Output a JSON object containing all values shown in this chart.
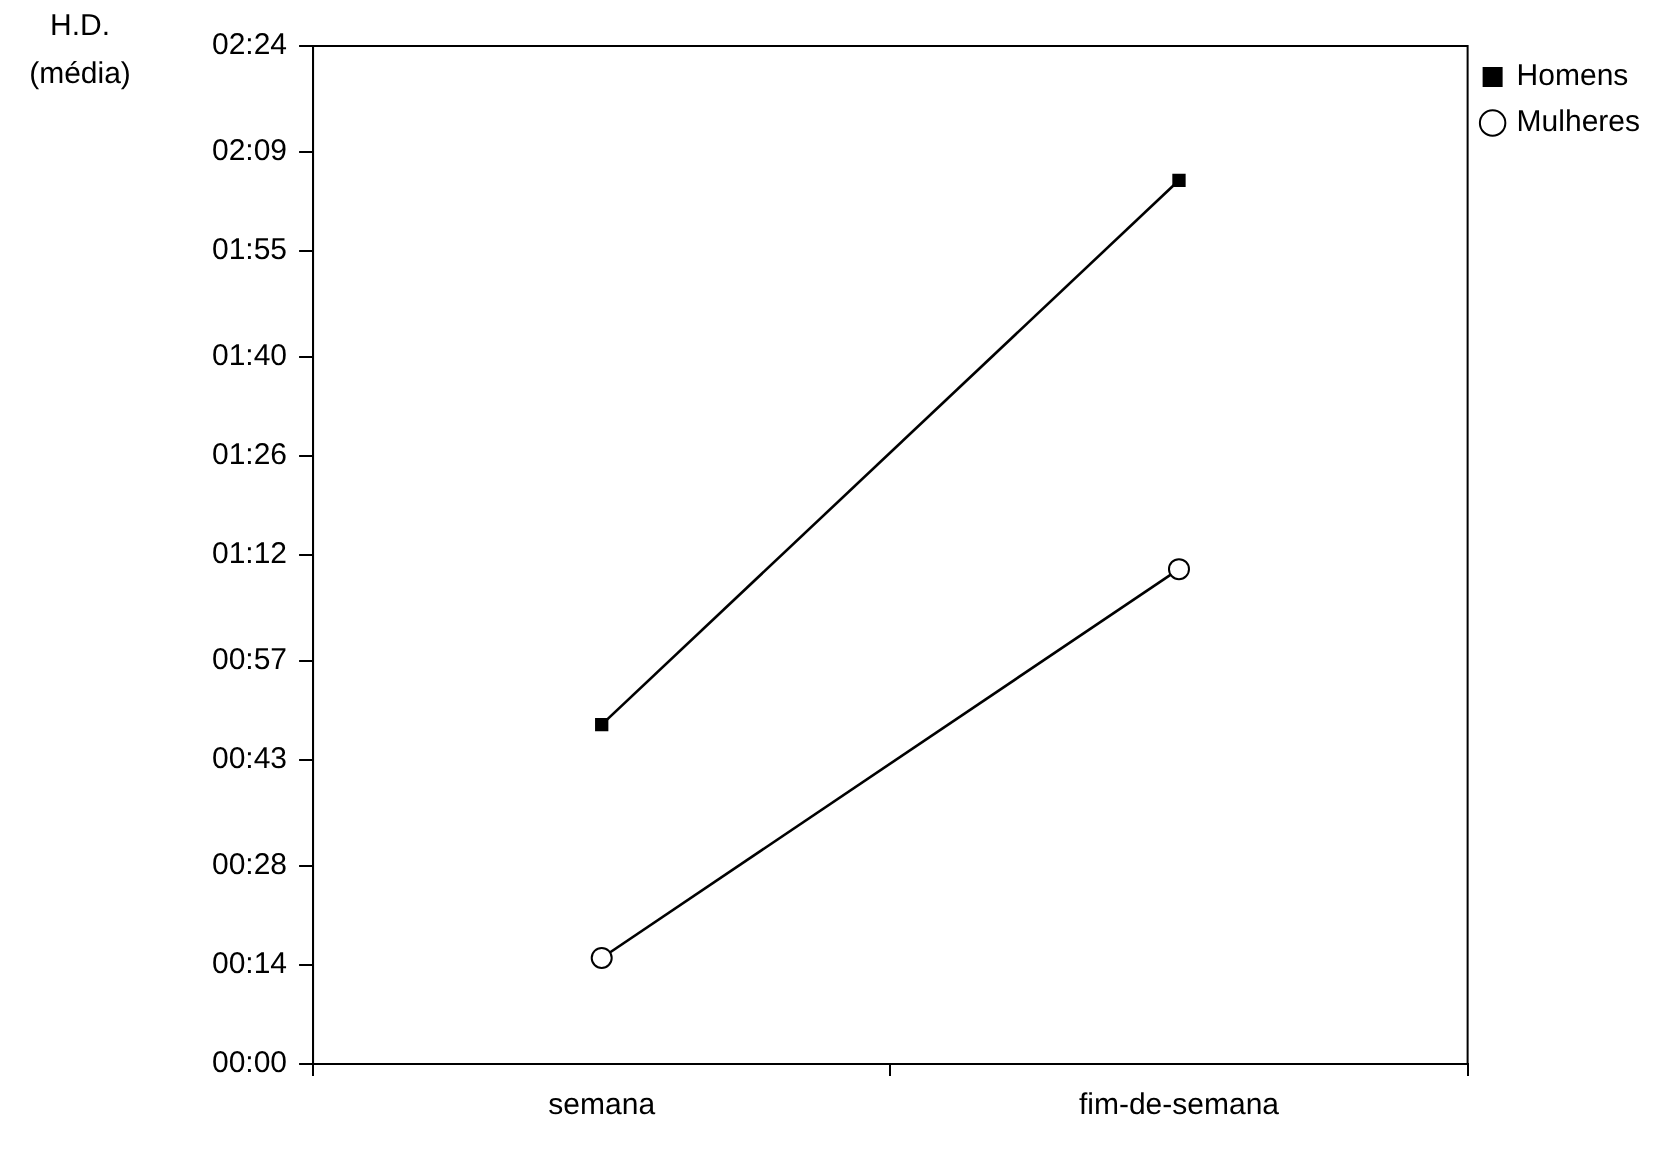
{
  "chart_data": {
    "type": "line",
    "ylabel": "H.D. (média)",
    "categories": [
      "semana",
      "fim-de-semana"
    ],
    "series": [
      {
        "name": "Homens",
        "color": "#000000",
        "marker": "square",
        "values": [
          48,
          125
        ]
      },
      {
        "name": "Mulheres",
        "color": "#000000",
        "marker": "circle",
        "values": [
          15,
          70
        ]
      }
    ],
    "ylim": [
      0,
      144
    ],
    "yticks": [
      {
        "value": 0,
        "label": "00:00"
      },
      {
        "value": 14,
        "label": "00:14"
      },
      {
        "value": 28,
        "label": "00:28"
      },
      {
        "value": 43,
        "label": "00:43"
      },
      {
        "value": 57,
        "label": "00:57"
      },
      {
        "value": 72,
        "label": "01:12"
      },
      {
        "value": 86,
        "label": "01:26"
      },
      {
        "value": 100,
        "label": "01:40"
      },
      {
        "value": 115,
        "label": "01:55"
      },
      {
        "value": 129,
        "label": "02:09"
      },
      {
        "value": 144,
        "label": "02:24"
      }
    ],
    "grid": false,
    "legend": "right",
    "line_style": "solid"
  }
}
